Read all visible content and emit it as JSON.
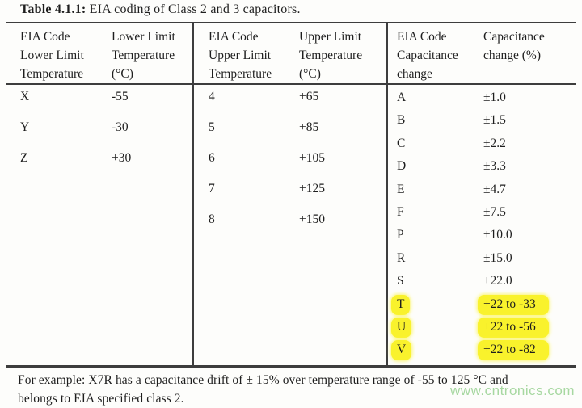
{
  "title": {
    "label": "Table 4.1.1:",
    "text": "EIA coding of Class 2 and 3 capacitors."
  },
  "table": {
    "groups": [
      {
        "code_header": [
          "EIA Code",
          "Lower Limit",
          "Temperature"
        ],
        "value_header": [
          "Lower Limit",
          "Temperature",
          "(°C)"
        ],
        "rows": [
          {
            "code": "X",
            "value": "-55"
          },
          {
            "code": "Y",
            "value": "-30"
          },
          {
            "code": "Z",
            "value": "+30"
          }
        ]
      },
      {
        "code_header": [
          "EIA Code",
          "Upper Limit",
          "Temperature"
        ],
        "value_header": [
          "Upper Limit",
          "Temperature",
          "(°C)"
        ],
        "rows": [
          {
            "code": "4",
            "value": "+65"
          },
          {
            "code": "5",
            "value": "+85"
          },
          {
            "code": "6",
            "value": "+105"
          },
          {
            "code": "7",
            "value": "+125"
          },
          {
            "code": "8",
            "value": "+150"
          }
        ]
      },
      {
        "code_header": [
          "EIA Code",
          "Capacitance",
          "change"
        ],
        "value_header": [
          "Capacitance",
          "change (%)"
        ],
        "rows": [
          {
            "code": "A",
            "value": "±1.0",
            "highlighted": false
          },
          {
            "code": "B",
            "value": "±1.5",
            "highlighted": false
          },
          {
            "code": "C",
            "value": "±2.2",
            "highlighted": false
          },
          {
            "code": "D",
            "value": "±3.3",
            "highlighted": false
          },
          {
            "code": "E",
            "value": "±4.7",
            "highlighted": false
          },
          {
            "code": "F",
            "value": "±7.5",
            "highlighted": false
          },
          {
            "code": "P",
            "value": "±10.0",
            "highlighted": false
          },
          {
            "code": "R",
            "value": "±15.0",
            "highlighted": false
          },
          {
            "code": "S",
            "value": "±22.0",
            "highlighted": false
          },
          {
            "code": "T",
            "value": "+22 to -33",
            "highlighted": true
          },
          {
            "code": "U",
            "value": "+22 to -56",
            "highlighted": true
          },
          {
            "code": "V",
            "value": "+22 to -82",
            "highlighted": true
          }
        ]
      }
    ]
  },
  "footer": {
    "line1": "For example: X7R has a capacitance drift of ± 15% over temperature range of -55 to 125 °C and",
    "line2": "belongs to EIA specified class 2."
  },
  "watermark": "www.cntronics.com",
  "colors": {
    "highlight": "#f9f22c",
    "watermark_green": "#a7d8a1",
    "rule_line": "#3d3d3d"
  }
}
